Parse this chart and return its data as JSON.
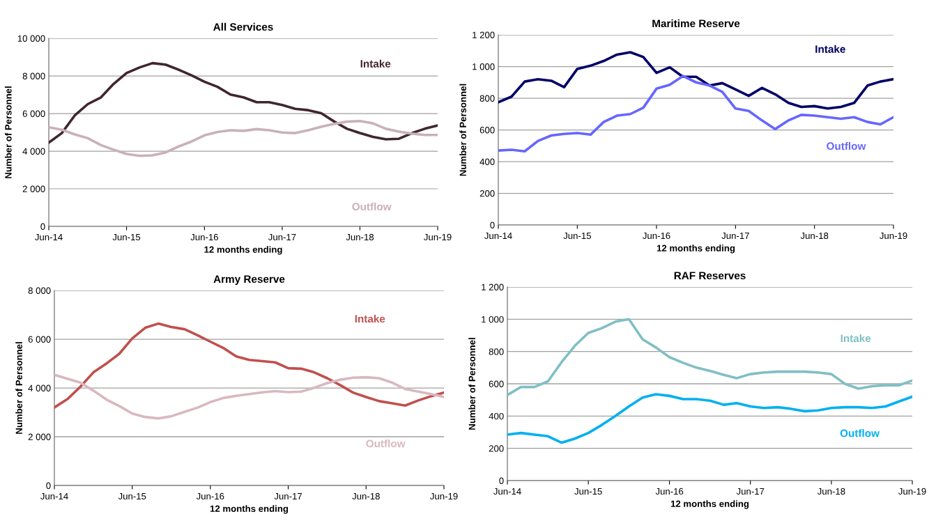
{
  "chart_data": [
    {
      "type": "line",
      "title": "All Services",
      "xlabel": "12 months ending",
      "ylabel": "Number of Personnel",
      "x": [
        "2014-06",
        "2014-08",
        "2014-10",
        "2014-12",
        "2015-02",
        "2015-04",
        "2015-06",
        "2015-08",
        "2015-10",
        "2015-12",
        "2016-02",
        "2016-04",
        "2016-06",
        "2016-08",
        "2016-10",
        "2016-12",
        "2017-02",
        "2017-04",
        "2017-06",
        "2017-08",
        "2017-10",
        "2017-12",
        "2018-02",
        "2018-04",
        "2018-06",
        "2018-08",
        "2018-10",
        "2018-12",
        "2019-02",
        "2019-04",
        "2019-06"
      ],
      "series": [
        {
          "name": "Intake",
          "color": "#40262f",
          "values": [
            4450,
            4960,
            5900,
            6500,
            6860,
            7570,
            8150,
            8450,
            8680,
            8600,
            8330,
            8030,
            7690,
            7420,
            7010,
            6860,
            6600,
            6600,
            6450,
            6250,
            6180,
            6020,
            5570,
            5190,
            4960,
            4760,
            4630,
            4660,
            4960,
            5190,
            5370
          ]
        },
        {
          "name": "Outflow",
          "color": "#c9b1b8",
          "values": [
            5270,
            5140,
            4890,
            4690,
            4320,
            4080,
            3850,
            3750,
            3780,
            3930,
            4250,
            4510,
            4840,
            5020,
            5110,
            5080,
            5170,
            5110,
            4990,
            4960,
            5110,
            5300,
            5450,
            5570,
            5600,
            5480,
            5190,
            5040,
            4930,
            4860,
            4860
          ]
        }
      ],
      "xlim": [
        "2014-06",
        "2019-06"
      ],
      "xticks": [
        {
          "value": "2014-06",
          "label": "Jun-14"
        },
        {
          "value": "2015-06",
          "label": "Jun-15"
        },
        {
          "value": "2016-06",
          "label": "Jun-16"
        },
        {
          "value": "2017-06",
          "label": "Jun-17"
        },
        {
          "value": "2018-06",
          "label": "Jun-18"
        },
        {
          "value": "2019-06",
          "label": "Jun-19"
        }
      ],
      "ylim": [
        0,
        10000
      ],
      "yticks": [
        0,
        {
          "value": 2000,
          "label": "2 000"
        },
        {
          "value": 4000,
          "label": "4 000"
        },
        {
          "value": 6000,
          "label": "6 000"
        },
        {
          "value": 8000,
          "label": "8 000"
        },
        {
          "value": 10000,
          "label": "10 000"
        }
      ],
      "grid": "y",
      "legend": false,
      "marker": "none",
      "line_style": "solid"
    },
    {
      "type": "line",
      "title": "Maritime Reserve",
      "xlabel": "12 months ending",
      "ylabel": "Number of Personnel",
      "x": [
        "2014-06",
        "2014-08",
        "2014-10",
        "2014-12",
        "2015-02",
        "2015-04",
        "2015-06",
        "2015-08",
        "2015-10",
        "2015-12",
        "2016-02",
        "2016-04",
        "2016-06",
        "2016-08",
        "2016-10",
        "2016-12",
        "2017-02",
        "2017-04",
        "2017-06",
        "2017-08",
        "2017-10",
        "2017-12",
        "2018-02",
        "2018-04",
        "2018-06",
        "2018-08",
        "2018-10",
        "2018-12",
        "2019-02",
        "2019-04",
        "2019-06"
      ],
      "series": [
        {
          "name": "Intake",
          "color": "#000066",
          "values": [
            775,
            810,
            905,
            920,
            910,
            870,
            985,
            1005,
            1035,
            1075,
            1090,
            1060,
            960,
            995,
            935,
            935,
            880,
            895,
            855,
            815,
            865,
            825,
            770,
            745,
            750,
            735,
            745,
            770,
            880,
            905,
            920
          ]
        },
        {
          "name": "Outflow",
          "color": "#6666ff",
          "values": [
            470,
            475,
            465,
            530,
            565,
            575,
            580,
            570,
            650,
            690,
            700,
            740,
            860,
            885,
            940,
            900,
            880,
            840,
            735,
            720,
            660,
            605,
            660,
            695,
            690,
            680,
            670,
            680,
            650,
            635,
            680
          ]
        }
      ],
      "xlim": [
        "2014-06",
        "2019-06"
      ],
      "xticks": [
        {
          "value": "2014-06",
          "label": "Jun-14"
        },
        {
          "value": "2015-06",
          "label": "Jun-15"
        },
        {
          "value": "2016-06",
          "label": "Jun-16"
        },
        {
          "value": "2017-06",
          "label": "Jun-17"
        },
        {
          "value": "2018-06",
          "label": "Jun-18"
        },
        {
          "value": "2019-06",
          "label": "Jun-19"
        }
      ],
      "ylim": [
        0,
        1200
      ],
      "yticks": [
        0,
        200,
        400,
        600,
        800,
        {
          "value": 1000,
          "label": "1 000"
        },
        {
          "value": 1200,
          "label": "1 200"
        }
      ],
      "grid": "y",
      "legend": false,
      "marker": "none",
      "line_style": "solid"
    },
    {
      "type": "line",
      "title": "Army Reserve",
      "xlabel": "12 months ending",
      "ylabel": "Number of Personnel",
      "x": [
        "2014-06",
        "2014-08",
        "2014-10",
        "2014-12",
        "2015-02",
        "2015-04",
        "2015-06",
        "2015-08",
        "2015-10",
        "2015-12",
        "2016-02",
        "2016-04",
        "2016-06",
        "2016-08",
        "2016-10",
        "2016-12",
        "2017-02",
        "2017-04",
        "2017-06",
        "2017-08",
        "2017-10",
        "2017-12",
        "2018-02",
        "2018-04",
        "2018-06",
        "2018-08",
        "2018-10",
        "2018-12",
        "2019-02",
        "2019-04",
        "2019-06"
      ],
      "series": [
        {
          "name": "Intake",
          "color": "#c0504d",
          "values": [
            3200,
            3540,
            4050,
            4640,
            5010,
            5400,
            6030,
            6470,
            6640,
            6500,
            6410,
            6170,
            5900,
            5640,
            5290,
            5150,
            5100,
            5050,
            4810,
            4790,
            4640,
            4400,
            4110,
            3810,
            3630,
            3460,
            3370,
            3280,
            3490,
            3660,
            3810
          ]
        },
        {
          "name": "Outflow",
          "color": "#d9b8bf",
          "values": [
            4540,
            4380,
            4220,
            3890,
            3520,
            3260,
            2950,
            2810,
            2750,
            2840,
            3020,
            3190,
            3420,
            3590,
            3680,
            3750,
            3820,
            3870,
            3830,
            3850,
            4010,
            4200,
            4340,
            4420,
            4440,
            4400,
            4220,
            3960,
            3850,
            3750,
            3630
          ]
        }
      ],
      "xlim": [
        "2014-06",
        "2019-06"
      ],
      "xticks": [
        {
          "value": "2014-06",
          "label": "Jun-14"
        },
        {
          "value": "2015-06",
          "label": "Jun-15"
        },
        {
          "value": "2016-06",
          "label": "Jun-16"
        },
        {
          "value": "2017-06",
          "label": "Jun-17"
        },
        {
          "value": "2018-06",
          "label": "Jun-18"
        },
        {
          "value": "2019-06",
          "label": "Jun-19"
        }
      ],
      "ylim": [
        0,
        8000
      ],
      "yticks": [
        0,
        {
          "value": 2000,
          "label": "2 000"
        },
        {
          "value": 4000,
          "label": "4 000"
        },
        {
          "value": 6000,
          "label": "6 000"
        },
        {
          "value": 8000,
          "label": "8 000"
        }
      ],
      "grid": "y",
      "legend": false,
      "marker": "none",
      "line_style": "solid"
    },
    {
      "type": "line",
      "title": "RAF Reserves",
      "xlabel": "12 months ending",
      "ylabel": "Number of Personnel",
      "x": [
        "2014-06",
        "2014-08",
        "2014-10",
        "2014-12",
        "2015-02",
        "2015-04",
        "2015-06",
        "2015-08",
        "2015-10",
        "2015-12",
        "2016-02",
        "2016-04",
        "2016-06",
        "2016-08",
        "2016-10",
        "2016-12",
        "2017-02",
        "2017-04",
        "2017-06",
        "2017-08",
        "2017-10",
        "2017-12",
        "2018-02",
        "2018-04",
        "2018-06",
        "2018-08",
        "2018-10",
        "2018-12",
        "2019-02",
        "2019-04",
        "2019-06"
      ],
      "series": [
        {
          "name": "Intake",
          "color": "#7fbfc4",
          "values": [
            530,
            580,
            580,
            615,
            735,
            835,
            915,
            945,
            985,
            1000,
            875,
            825,
            765,
            730,
            700,
            680,
            655,
            635,
            660,
            670,
            675,
            675,
            675,
            670,
            660,
            600,
            570,
            585,
            590,
            590,
            620
          ]
        },
        {
          "name": "Outflow",
          "color": "#00b0f0",
          "values": [
            285,
            295,
            285,
            275,
            235,
            260,
            295,
            345,
            400,
            460,
            515,
            535,
            525,
            505,
            505,
            495,
            470,
            480,
            460,
            450,
            455,
            445,
            430,
            435,
            450,
            455,
            455,
            450,
            460,
            490,
            520
          ]
        }
      ],
      "xlim": [
        "2014-06",
        "2019-06"
      ],
      "xticks": [
        {
          "value": "2014-06",
          "label": "Jun-14"
        },
        {
          "value": "2015-06",
          "label": "Jun-15"
        },
        {
          "value": "2016-06",
          "label": "Jun-16"
        },
        {
          "value": "2017-06",
          "label": "Jun-17"
        },
        {
          "value": "2018-06",
          "label": "Jun-18"
        },
        {
          "value": "2019-06",
          "label": "Jun-19"
        }
      ],
      "ylim": [
        0,
        1200
      ],
      "yticks": [
        0,
        200,
        400,
        600,
        800,
        {
          "value": 1000,
          "label": "1 000"
        },
        {
          "value": 1200,
          "label": "1 200"
        }
      ],
      "grid": "y",
      "legend": false,
      "marker": "none",
      "line_style": "solid"
    }
  ]
}
